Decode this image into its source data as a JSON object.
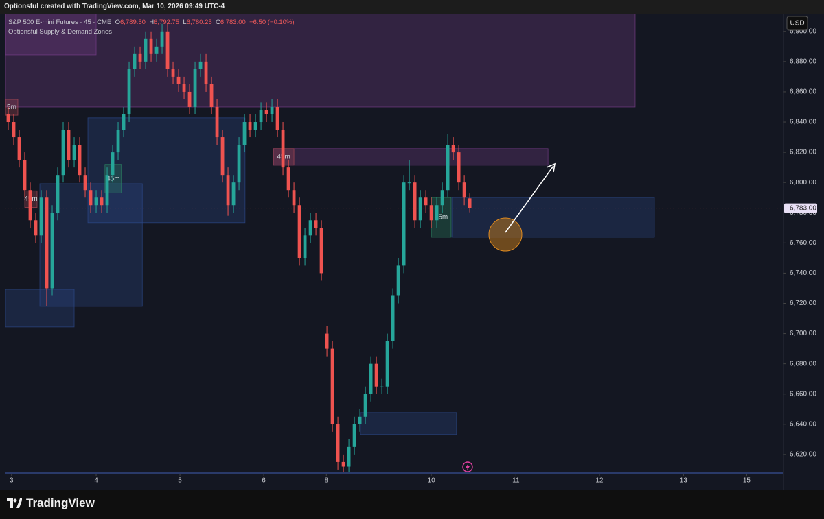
{
  "header": "Optionsful created with TradingView.com, Mar 10, 2026 09:49 UTC-4",
  "footer_logo": "TradingView",
  "chart_data": {
    "type": "candlestick",
    "title": "S&P 500 E-mini Futures · 45 · CME",
    "legend_values": {
      "open_key": "O",
      "open": "6,789.50",
      "high_key": "H",
      "high": "6,792.75",
      "low_key": "L",
      "low": "6,780.25",
      "close_key": "C",
      "close": "6,783.00",
      "change": "−6.50 (−0.10%)"
    },
    "indicator": "Optionsful Supply & Demand Zones",
    "currency": "USD",
    "up_color": "#26a69a",
    "down_color": "#ef5350",
    "x": [
      0.5,
      1.5,
      2.5,
      3.5,
      4.5,
      5.5,
      6.5,
      7.5,
      8.5,
      9.5,
      10.5,
      11.5,
      12.5,
      13.5,
      14.5,
      15.5,
      16.5,
      17.5,
      18.5,
      19.5,
      20.5,
      21.5,
      22.5,
      23.5,
      24.5,
      25.5,
      26.5,
      27.5,
      28.5,
      29.5,
      30.5,
      31.5,
      32.5,
      33.5,
      34.5,
      35.5,
      36.5,
      37.5,
      38.5,
      39.5,
      40.5,
      41.5,
      42.5,
      43.5,
      44.5,
      45.5,
      46.5,
      47.5,
      48.5,
      49.5,
      50.5,
      51.5,
      52.5,
      53.5,
      54.5,
      55.5,
      56.5,
      57.5,
      58.5,
      59.5,
      60.5,
      61.5,
      62.5,
      63.5,
      64.5,
      65.5,
      66.5,
      67.5,
      68.5,
      69.5,
      70.5,
      71.5,
      72.5,
      73.5,
      74.5,
      75.5,
      76.5,
      77.5,
      78.5,
      79.5,
      80.5,
      81.5,
      82.5,
      83.5,
      84.5
    ],
    "open": [
      6845,
      6840,
      6830,
      6815,
      6795,
      6775,
      6765,
      6790,
      6730,
      6780,
      6805,
      6835,
      6815,
      6825,
      6805,
      6795,
      6785,
      6790,
      6785,
      6805,
      6820,
      6835,
      6845,
      6875,
      6885,
      6880,
      6895,
      6885,
      6890,
      6900,
      6875,
      6870,
      6865,
      6860,
      6850,
      6875,
      6880,
      6865,
      6850,
      6830,
      6805,
      6785,
      6800,
      6825,
      6840,
      6835,
      6840,
      6848,
      6845,
      6850,
      6835,
      6810,
      6795,
      6785,
      6750,
      6765,
      6775,
      6770,
      6700,
      6690,
      6640,
      6615,
      6612,
      6625,
      6640,
      6645,
      6660,
      6680,
      6665,
      6665,
      6695,
      6725,
      6745,
      6800,
      6800,
      6775,
      6790,
      6785,
      6775,
      6785,
      6795,
      6825,
      6820,
      6800,
      6789.5
    ],
    "high": [
      6850,
      6845,
      6835,
      6820,
      6800,
      6780,
      6795,
      6795,
      6785,
      6810,
      6840,
      6840,
      6830,
      6830,
      6810,
      6800,
      6795,
      6795,
      6810,
      6825,
      6840,
      6850,
      6880,
      6890,
      6890,
      6900,
      6900,
      6895,
      6905,
      6905,
      6880,
      6875,
      6870,
      6865,
      6880,
      6885,
      6885,
      6870,
      6855,
      6835,
      6810,
      6805,
      6830,
      6845,
      6845,
      6845,
      6853,
      6853,
      6855,
      6855,
      6840,
      6815,
      6800,
      6790,
      6770,
      6780,
      6780,
      6775,
      6705,
      6695,
      6645,
      6620,
      6630,
      6645,
      6650,
      6665,
      6685,
      6685,
      6670,
      6700,
      6730,
      6750,
      6805,
      6815,
      6805,
      6795,
      6795,
      6790,
      6790,
      6800,
      6832,
      6830,
      6825,
      6805,
      6792.75
    ],
    "low": [
      6835,
      6825,
      6810,
      6790,
      6770,
      6760,
      6760,
      6718,
      6725,
      6775,
      6800,
      6810,
      6810,
      6800,
      6790,
      6780,
      6780,
      6780,
      6780,
      6800,
      6815,
      6830,
      6840,
      6870,
      6875,
      6875,
      6880,
      6880,
      6885,
      6870,
      6865,
      6860,
      6855,
      6845,
      6845,
      6870,
      6860,
      6845,
      6825,
      6800,
      6778,
      6780,
      6795,
      6820,
      6830,
      6830,
      6835,
      6840,
      6840,
      6830,
      6805,
      6790,
      6780,
      6745,
      6745,
      6760,
      6765,
      6735,
      6685,
      6635,
      6610,
      6608,
      6608,
      6620,
      6635,
      6640,
      6655,
      6660,
      6660,
      6660,
      6690,
      6720,
      6740,
      6795,
      6770,
      6770,
      6780,
      6770,
      6770,
      6780,
      6790,
      6815,
      6795,
      6785,
      6780.25
    ],
    "close": [
      6840,
      6830,
      6815,
      6795,
      6775,
      6765,
      6790,
      6730,
      6780,
      6805,
      6835,
      6815,
      6825,
      6805,
      6795,
      6785,
      6790,
      6785,
      6805,
      6820,
      6835,
      6845,
      6875,
      6885,
      6880,
      6895,
      6885,
      6890,
      6900,
      6875,
      6870,
      6865,
      6860,
      6850,
      6875,
      6880,
      6865,
      6850,
      6830,
      6805,
      6785,
      6800,
      6825,
      6840,
      6835,
      6840,
      6848,
      6845,
      6850,
      6835,
      6810,
      6795,
      6785,
      6750,
      6765,
      6775,
      6770,
      6740,
      6690,
      6640,
      6615,
      6612,
      6625,
      6640,
      6645,
      6660,
      6680,
      6665,
      6665,
      6695,
      6725,
      6745,
      6800,
      6800,
      6775,
      6790,
      6785,
      6775,
      6785,
      6795,
      6825,
      6820,
      6800,
      6790,
      6783
    ],
    "zones": [
      {
        "x": [
          0,
          114.6
        ],
        "y": [
          6911.7,
          6850
        ],
        "color": "#7a3f8c"
      },
      {
        "x": [
          0,
          16.5
        ],
        "y": [
          6911.7,
          6884.5
        ],
        "color": "#7a3f8c"
      },
      {
        "x": [
          15,
          43.6
        ],
        "y": [
          6842.8,
          6773.4
        ],
        "color": "#2d4a8c"
      },
      {
        "x": [
          6.25,
          24.9
        ],
        "y": [
          6799.2,
          6718
        ],
        "color": "#2d4a8c"
      },
      {
        "x": [
          0,
          12.5
        ],
        "y": [
          6729.3,
          6704.4
        ],
        "color": "#2d4a8c"
      },
      {
        "x": [
          48.75,
          98.75
        ],
        "y": [
          6822.4,
          6811.5
        ],
        "color": "#7a3f8c"
      },
      {
        "x": [
          81.25,
          118.1
        ],
        "y": [
          6790.1,
          6763.8
        ],
        "color": "#2d4a8c"
      },
      {
        "x": [
          64.6,
          82.1
        ],
        "y": [
          6647.7,
          6633.2
        ],
        "color": "#2d4a8c"
      },
      {
        "x": [
          77.5,
          81.1
        ],
        "y": [
          6790.1,
          6763.8
        ],
        "color": "#2e8c66",
        "label": "45m"
      },
      {
        "x": [
          18.1,
          21.1
        ],
        "y": [
          6812,
          6793
        ],
        "color": "#2e8c66",
        "label": "45m"
      },
      {
        "x": [
          0,
          2.25
        ],
        "y": [
          6855,
          6844.5
        ],
        "color": "#b04a55",
        "label": "5m"
      },
      {
        "x": [
          3.5,
          5.75
        ],
        "y": [
          6794.5,
          6783.5
        ],
        "color": "#b04a55",
        "label": "45m"
      },
      {
        "x": [
          48.75,
          52.5
        ],
        "y": [
          6822.4,
          6811.5
        ],
        "color": "#b04a55",
        "label": "45m"
      }
    ],
    "last_price": {
      "value": 6783,
      "label": "6,783.00"
    },
    "xlim": [
      0,
      141.6
    ],
    "xticks": [
      {
        "value": 1.1,
        "label": "3"
      },
      {
        "value": 16.5,
        "label": "4"
      },
      {
        "value": 31.75,
        "label": "5"
      },
      {
        "value": 47,
        "label": "6"
      },
      {
        "value": 58.4,
        "label": "8"
      },
      {
        "value": 77.5,
        "label": "10"
      },
      {
        "value": 92.9,
        "label": "11"
      },
      {
        "value": 108.1,
        "label": "12"
      },
      {
        "value": 123.4,
        "label": "13"
      },
      {
        "value": 134.9,
        "label": "15"
      }
    ],
    "ylim": [
      6607.7,
      6911.7
    ],
    "yticks": [
      {
        "value": 6620,
        "label": "6,620.00"
      },
      {
        "value": 6640,
        "label": "6,640.00"
      },
      {
        "value": 6660,
        "label": "6,660.00"
      },
      {
        "value": 6680,
        "label": "6,680.00"
      },
      {
        "value": 6700,
        "label": "6,700.00"
      },
      {
        "value": 6720,
        "label": "6,720.00"
      },
      {
        "value": 6740,
        "label": "6,740.00"
      },
      {
        "value": 6760,
        "label": "6,760.00"
      },
      {
        "value": 6780,
        "label": "6,780.00"
      },
      {
        "value": 6800,
        "label": "6,800.00"
      },
      {
        "value": 6820,
        "label": "6,820.00"
      },
      {
        "value": 6840,
        "label": "6,840.00"
      },
      {
        "value": 6860,
        "label": "6,860.00"
      },
      {
        "value": 6880,
        "label": "6,880.00"
      },
      {
        "value": 6900,
        "label": "6,900.00"
      }
    ]
  }
}
